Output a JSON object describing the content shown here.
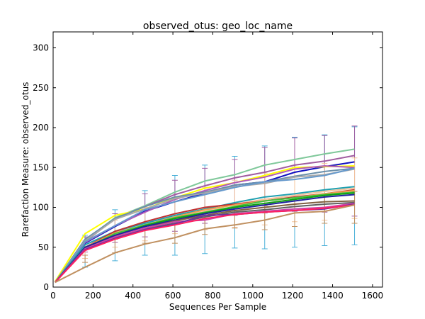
{
  "chart_data": {
    "type": "line",
    "title": "observed_otus: geo_loc_name",
    "xlabel": "Sequences Per Sample",
    "ylabel": "Rarefaction Measure: observed_otus",
    "xlim": [
      0,
      1650
    ],
    "ylim": [
      0,
      320
    ],
    "xticks": [
      0,
      200,
      400,
      600,
      800,
      1000,
      1200,
      1400,
      1600
    ],
    "yticks": [
      0,
      50,
      100,
      150,
      200,
      250,
      300
    ],
    "grid": false,
    "legend": "none",
    "x": [
      10,
      160,
      310,
      460,
      610,
      760,
      910,
      1060,
      1210,
      1360,
      1510
    ],
    "series": [
      {
        "color": "#7fc89a",
        "values": [
          6,
          59,
          87,
          102,
          119,
          133,
          141,
          153,
          160,
          167,
          173
        ]
      },
      {
        "color": "#a05ca0",
        "values": [
          6,
          57,
          86,
          101,
          116,
          127,
          137,
          144,
          153,
          158,
          165
        ]
      },
      {
        "color": "#1010c0",
        "values": [
          6,
          55,
          76,
          95,
          107,
          118,
          128,
          132,
          144,
          151,
          157
        ]
      },
      {
        "color": "#ffff00",
        "values": [
          7,
          67,
          90,
          98,
          112,
          124,
          131,
          140,
          150,
          151,
          152
        ]
      },
      {
        "color": "#b05ab8",
        "values": [
          6,
          56,
          77,
          94,
          110,
          121,
          131,
          138,
          148,
          152,
          150
        ]
      },
      {
        "color": "#6a8faa",
        "values": [
          6,
          60,
          86,
          101,
          113,
          119,
          128,
          132,
          139,
          145,
          149
        ]
      },
      {
        "color": "#a9a9a9",
        "values": [
          6,
          58,
          85,
          98,
          111,
          118,
          126,
          130,
          138,
          141,
          148
        ]
      },
      {
        "color": "#6699cc",
        "values": [
          6,
          57,
          77,
          97,
          107,
          116,
          125,
          132,
          135,
          140,
          149
        ]
      },
      {
        "color": "#20a0b0",
        "values": [
          6,
          53,
          70,
          80,
          90,
          98,
          106,
          113,
          117,
          122,
          126
        ]
      },
      {
        "color": "#f4c49c",
        "values": [
          6,
          50,
          66,
          77,
          86,
          95,
          104,
          110,
          115,
          120,
          124
        ]
      },
      {
        "color": "#c03030",
        "values": [
          6,
          50,
          70,
          82,
          92,
          100,
          104,
          108,
          113,
          117,
          122
        ]
      },
      {
        "color": "#f0a050",
        "values": [
          6,
          50,
          68,
          78,
          88,
          97,
          103,
          108,
          112,
          117,
          121
        ]
      },
      {
        "color": "#40c040",
        "values": [
          6,
          49,
          67,
          78,
          87,
          94,
          101,
          108,
          112,
          116,
          119
        ]
      },
      {
        "color": "#10a010",
        "values": [
          6,
          50,
          65,
          77,
          86,
          93,
          100,
          105,
          110,
          115,
          118
        ]
      },
      {
        "color": "#2020a0",
        "values": [
          6,
          50,
          65,
          76,
          84,
          92,
          98,
          103,
          108,
          113,
          116
        ]
      },
      {
        "color": "#806040",
        "values": [
          6,
          48,
          63,
          74,
          83,
          90,
          96,
          100,
          104,
          107,
          108
        ]
      },
      {
        "color": "#606060",
        "values": [
          6,
          47,
          62,
          73,
          80,
          88,
          94,
          97,
          101,
          104,
          106
        ]
      },
      {
        "color": "#cc44aa",
        "values": [
          6,
          48,
          63,
          74,
          82,
          84,
          92,
          95,
          98,
          100,
          105
        ]
      },
      {
        "color": "#7030a0",
        "values": [
          6,
          47,
          61,
          72,
          79,
          90,
          91,
          94,
          96,
          98,
          104
        ]
      },
      {
        "color": "#ff2060",
        "values": [
          6,
          46,
          60,
          71,
          78,
          86,
          91,
          94,
          96,
          99,
          103
        ]
      },
      {
        "color": "#c09060",
        "values": [
          6,
          25,
          43,
          54,
          62,
          73,
          78,
          84,
          93,
          95,
          103
        ]
      }
    ],
    "errorbars": [
      {
        "color": "#4ab0d8",
        "x": [
          160,
          310,
          460,
          610,
          760,
          910,
          1060,
          1210,
          1360,
          1510
        ],
        "low": [
          25,
          33,
          40,
          40,
          42,
          49,
          48,
          50,
          52,
          53
        ],
        "high": [
          65,
          97,
          121,
          140,
          153,
          164,
          177,
          188,
          191,
          201
        ]
      },
      {
        "color": "#a05ca0",
        "x": [
          160,
          310,
          460,
          610,
          760,
          910,
          1060,
          1210,
          1360,
          1510
        ],
        "low": [
          44,
          56,
          63,
          70,
          80,
          90,
          93,
          95,
          94,
          89
        ],
        "high": [
          63,
          92,
          117,
          134,
          149,
          160,
          175,
          187,
          190,
          202
        ]
      },
      {
        "color": "#f4c49c",
        "x": [
          160,
          310,
          460,
          610,
          760,
          910,
          1060,
          1210,
          1360,
          1510
        ],
        "low": [
          36,
          50,
          58,
          67,
          72,
          75,
          78,
          82,
          84,
          86
        ],
        "high": [
          58,
          84,
          100,
          110,
          125,
          134,
          143,
          150,
          155,
          162
        ]
      },
      {
        "color": "#c09060",
        "x": [
          160,
          310,
          460,
          610,
          760,
          910,
          1060,
          1210,
          1360,
          1510
        ],
        "low": [
          31,
          43,
          55,
          55,
          66,
          74,
          72,
          76,
          80,
          80
        ],
        "high": [
          40,
          60,
          72,
          80,
          90,
          96,
          102,
          110,
          115,
          120
        ]
      }
    ]
  }
}
